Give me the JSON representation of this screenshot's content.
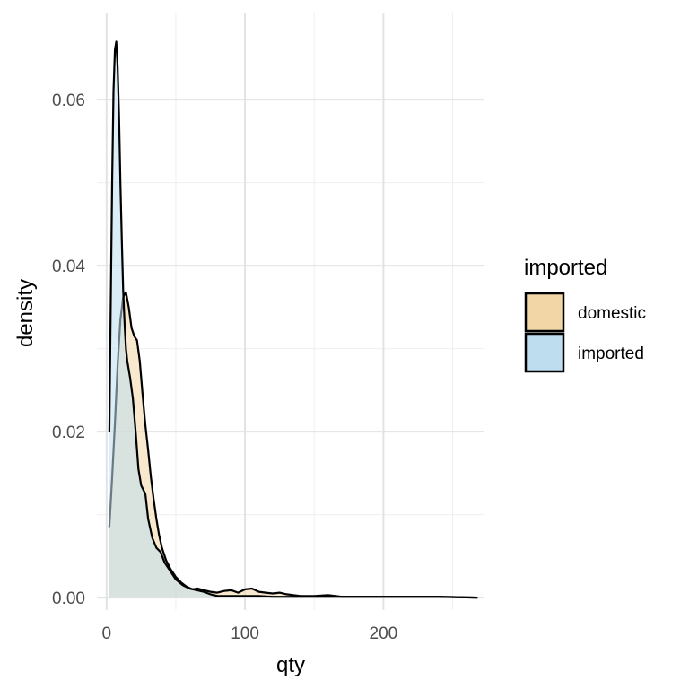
{
  "chart_data": {
    "type": "area",
    "title": "",
    "xlabel": "qty",
    "ylabel": "density",
    "xlim": [
      -7,
      273
    ],
    "ylim": [
      -0.0015,
      0.0705
    ],
    "x_ticks": [
      0,
      100,
      200
    ],
    "x_tick_labels": [
      "0",
      "100",
      "200"
    ],
    "y_ticks": [
      0.0,
      0.02,
      0.04,
      0.06
    ],
    "y_tick_labels": [
      "0.00",
      "0.02",
      "0.04",
      "0.06"
    ],
    "x_minor_ticks": [
      50,
      150,
      250
    ],
    "y_minor_ticks": [
      0.01,
      0.03,
      0.05
    ],
    "grid": true,
    "legend": {
      "title": "imported",
      "placement": "right",
      "entries": [
        "domestic",
        "imported"
      ]
    },
    "series": [
      {
        "name": "domestic",
        "fill": "#f3d6a6",
        "x": [
          2,
          4,
          6,
          8,
          10,
          12,
          14,
          16,
          18,
          20,
          22,
          24,
          26,
          28,
          30,
          32,
          34,
          36,
          38,
          40,
          43,
          46,
          50,
          54,
          58,
          62,
          66,
          70,
          75,
          80,
          85,
          90,
          95,
          100,
          105,
          110,
          115,
          120,
          125,
          130,
          140,
          150,
          160,
          170,
          180,
          200,
          220,
          240,
          268
        ],
        "y": [
          0.0085,
          0.0145,
          0.021,
          0.028,
          0.0335,
          0.0362,
          0.0368,
          0.035,
          0.0325,
          0.0315,
          0.031,
          0.0285,
          0.0245,
          0.0208,
          0.0178,
          0.0145,
          0.0118,
          0.0095,
          0.0075,
          0.006,
          0.0045,
          0.0035,
          0.0025,
          0.0018,
          0.0013,
          0.001,
          0.0011,
          0.0009,
          0.0007,
          0.0006,
          0.0008,
          0.0009,
          0.0006,
          0.001,
          0.0011,
          0.0007,
          0.0006,
          0.0005,
          0.0006,
          0.0004,
          0.0002,
          0.0002,
          0.0003,
          0.0001,
          0.0001,
          0.0001,
          0.0001,
          0.0001,
          0.0
        ]
      },
      {
        "name": "imported",
        "fill": "#bedeef",
        "x": [
          2,
          3,
          4,
          5,
          6,
          7,
          8,
          9,
          10,
          11,
          12,
          13,
          14,
          15,
          17,
          19,
          21,
          23,
          25,
          28,
          30,
          33,
          36,
          39,
          42,
          46,
          50,
          55,
          60,
          65,
          70,
          75,
          80,
          90,
          100,
          110,
          120,
          130,
          150,
          170,
          200,
          240,
          268
        ],
        "y": [
          0.02,
          0.035,
          0.05,
          0.061,
          0.066,
          0.067,
          0.064,
          0.058,
          0.05,
          0.043,
          0.037,
          0.033,
          0.03,
          0.0285,
          0.0265,
          0.024,
          0.02,
          0.0155,
          0.0135,
          0.0125,
          0.0095,
          0.0072,
          0.006,
          0.0055,
          0.0042,
          0.0032,
          0.0022,
          0.0015,
          0.0011,
          0.0009,
          0.0007,
          0.0004,
          0.0002,
          0.0002,
          0.0002,
          0.0002,
          0.0001,
          0.0001,
          0.0001,
          0.0001,
          0.0001,
          0.0001,
          0.0
        ]
      }
    ]
  }
}
